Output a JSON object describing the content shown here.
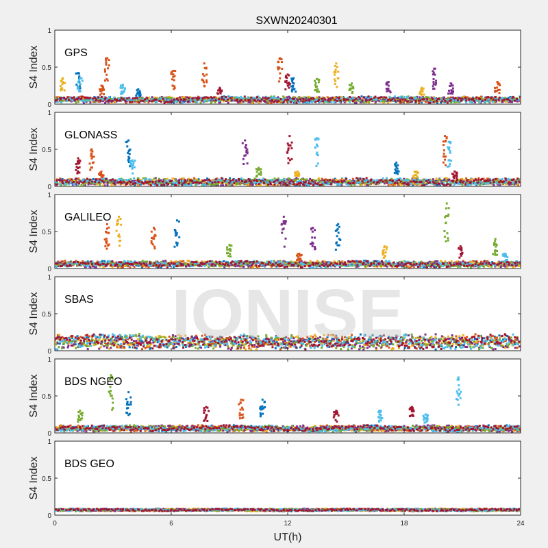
{
  "chart_data": {
    "type": "scatter",
    "title": "SXWN20240301",
    "xlabel": "UT(h)",
    "ylabel": "S4 Index",
    "xlim": [
      0,
      24
    ],
    "ylim": [
      0,
      1
    ],
    "xticks": [
      0,
      6,
      12,
      18,
      24
    ],
    "yticks": [
      0,
      0.5,
      1
    ],
    "ytick_labels": [
      "0",
      "0.5",
      "1"
    ],
    "grid": false,
    "watermark": "IONISE",
    "series_colors": [
      "#0072BD",
      "#D95319",
      "#EDB120",
      "#7E2F8E",
      "#77AC30",
      "#4DBEEE",
      "#A2142F"
    ],
    "panels": [
      {
        "label": "GPS",
        "baseline": 0.06,
        "noise": 0.03,
        "spikes": [
          {
            "x": 0.4,
            "peak": 0.35,
            "color": 2
          },
          {
            "x": 1.2,
            "peak": 0.42,
            "color": 0
          },
          {
            "x": 1.3,
            "peak": 0.35,
            "color": 5
          },
          {
            "x": 2.4,
            "peak": 0.25,
            "color": 1
          },
          {
            "x": 2.7,
            "peak": 0.62,
            "color": 1
          },
          {
            "x": 3.5,
            "peak": 0.26,
            "color": 5
          },
          {
            "x": 4.3,
            "peak": 0.2,
            "color": 0
          },
          {
            "x": 6.1,
            "peak": 0.45,
            "color": 1
          },
          {
            "x": 7.7,
            "peak": 0.55,
            "color": 1
          },
          {
            "x": 8.5,
            "peak": 0.22,
            "color": 6
          },
          {
            "x": 11.6,
            "peak": 0.62,
            "color": 1
          },
          {
            "x": 12.0,
            "peak": 0.4,
            "color": 6
          },
          {
            "x": 12.3,
            "peak": 0.35,
            "color": 0
          },
          {
            "x": 13.5,
            "peak": 0.34,
            "color": 4
          },
          {
            "x": 14.5,
            "peak": 0.55,
            "color": 2
          },
          {
            "x": 15.3,
            "peak": 0.28,
            "color": 4
          },
          {
            "x": 17.2,
            "peak": 0.3,
            "color": 3
          },
          {
            "x": 18.9,
            "peak": 0.22,
            "color": 2
          },
          {
            "x": 19.6,
            "peak": 0.48,
            "color": 3
          },
          {
            "x": 20.4,
            "peak": 0.28,
            "color": 3
          },
          {
            "x": 22.8,
            "peak": 0.3,
            "color": 1
          }
        ]
      },
      {
        "label": "GLONASS",
        "baseline": 0.06,
        "noise": 0.035,
        "spikes": [
          {
            "x": 1.2,
            "peak": 0.38,
            "color": 6
          },
          {
            "x": 1.9,
            "peak": 0.5,
            "color": 1
          },
          {
            "x": 2.4,
            "peak": 0.2,
            "color": 1
          },
          {
            "x": 3.8,
            "peak": 0.62,
            "color": 0
          },
          {
            "x": 4.0,
            "peak": 0.35,
            "color": 5
          },
          {
            "x": 9.8,
            "peak": 0.62,
            "color": 3
          },
          {
            "x": 10.5,
            "peak": 0.25,
            "color": 4
          },
          {
            "x": 12.1,
            "peak": 0.68,
            "color": 6
          },
          {
            "x": 12.5,
            "peak": 0.2,
            "color": 2
          },
          {
            "x": 13.5,
            "peak": 0.65,
            "color": 5
          },
          {
            "x": 17.6,
            "peak": 0.32,
            "color": 0
          },
          {
            "x": 18.6,
            "peak": 0.2,
            "color": 2
          },
          {
            "x": 20.1,
            "peak": 0.68,
            "color": 1
          },
          {
            "x": 20.3,
            "peak": 0.6,
            "color": 5
          },
          {
            "x": 20.6,
            "peak": 0.2,
            "color": 6
          }
        ]
      },
      {
        "label": "GALILEO",
        "baseline": 0.06,
        "noise": 0.03,
        "spikes": [
          {
            "x": 2.7,
            "peak": 0.6,
            "color": 1
          },
          {
            "x": 3.3,
            "peak": 0.7,
            "color": 2
          },
          {
            "x": 5.1,
            "peak": 0.55,
            "color": 1
          },
          {
            "x": 6.3,
            "peak": 0.65,
            "color": 0
          },
          {
            "x": 9.0,
            "peak": 0.32,
            "color": 4
          },
          {
            "x": 11.8,
            "peak": 0.7,
            "color": 3
          },
          {
            "x": 12.6,
            "peak": 0.2,
            "color": 1
          },
          {
            "x": 13.3,
            "peak": 0.55,
            "color": 3
          },
          {
            "x": 14.6,
            "peak": 0.6,
            "color": 0
          },
          {
            "x": 17.0,
            "peak": 0.3,
            "color": 2
          },
          {
            "x": 20.2,
            "peak": 0.88,
            "color": 4
          },
          {
            "x": 20.9,
            "peak": 0.3,
            "color": 6
          },
          {
            "x": 22.7,
            "peak": 0.4,
            "color": 4
          },
          {
            "x": 23.2,
            "peak": 0.2,
            "color": 5
          }
        ]
      },
      {
        "label": "SBAS",
        "baseline": 0.12,
        "noise": 0.07,
        "spikes": []
      },
      {
        "label": "BDS NGEO",
        "baseline": 0.06,
        "noise": 0.03,
        "spikes": [
          {
            "x": 1.3,
            "peak": 0.3,
            "color": 4
          },
          {
            "x": 2.9,
            "peak": 0.78,
            "color": 4
          },
          {
            "x": 3.8,
            "peak": 0.55,
            "color": 0
          },
          {
            "x": 7.8,
            "peak": 0.35,
            "color": 6
          },
          {
            "x": 9.6,
            "peak": 0.45,
            "color": 1
          },
          {
            "x": 10.7,
            "peak": 0.45,
            "color": 0
          },
          {
            "x": 14.5,
            "peak": 0.3,
            "color": 6
          },
          {
            "x": 16.8,
            "peak": 0.3,
            "color": 5
          },
          {
            "x": 18.4,
            "peak": 0.35,
            "color": 6
          },
          {
            "x": 19.1,
            "peak": 0.25,
            "color": 5
          },
          {
            "x": 20.8,
            "peak": 0.75,
            "color": 5
          }
        ]
      },
      {
        "label": "BDS GEO",
        "baseline": 0.07,
        "noise": 0.012,
        "spikes": []
      }
    ]
  }
}
